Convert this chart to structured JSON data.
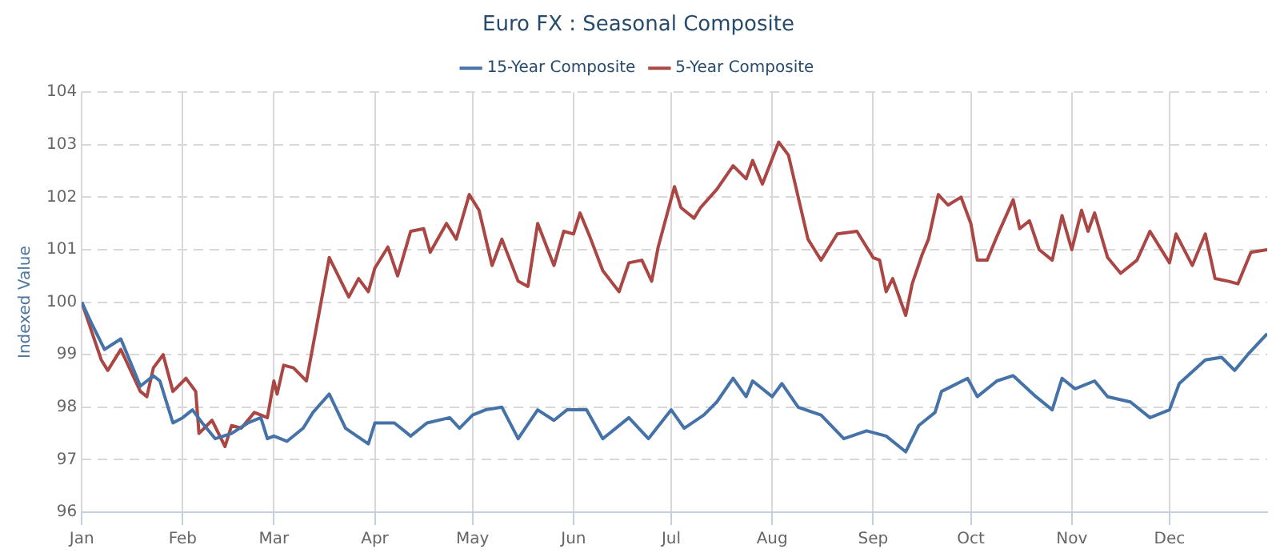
{
  "chart_data": {
    "type": "line",
    "title": "Euro FX : Seasonal Composite",
    "ylabel": "Indexed Value",
    "xlim": [
      "--01-01",
      "--12-31"
    ],
    "xticks": [
      {
        "value": "--01-01",
        "label": "Jan"
      },
      {
        "value": "--02-01",
        "label": "Feb"
      },
      {
        "value": "--03-01",
        "label": "Mar"
      },
      {
        "value": "--04-01",
        "label": "Apr"
      },
      {
        "value": "--05-01",
        "label": "May"
      },
      {
        "value": "--06-01",
        "label": "Jun"
      },
      {
        "value": "--07-01",
        "label": "Jul"
      },
      {
        "value": "--08-01",
        "label": "Aug"
      },
      {
        "value": "--09-01",
        "label": "Sep"
      },
      {
        "value": "--10-01",
        "label": "Oct"
      },
      {
        "value": "--11-01",
        "label": "Nov"
      },
      {
        "value": "--12-01",
        "label": "Dec"
      }
    ],
    "ylim": [
      96,
      104
    ],
    "yticks": [
      96,
      97,
      98,
      99,
      100,
      101,
      102,
      103,
      104
    ],
    "grid": true,
    "legend": "top",
    "marker": "none",
    "line_style": "solid",
    "series": [
      {
        "name": "15-Year Composite",
        "color": "#4572a7",
        "x": [
          "--01-01",
          "--01-04",
          "--01-08",
          "--01-13",
          "--01-19",
          "--01-23",
          "--01-25",
          "--01-29",
          "--02-01",
          "--02-04",
          "--02-07",
          "--02-11",
          "--02-16",
          "--02-21",
          "--02-25",
          "--02-27",
          "--03-01",
          "--03-05",
          "--03-10",
          "--03-13",
          "--03-18",
          "--03-23",
          "--03-30",
          "--04-01",
          "--04-07",
          "--04-12",
          "--04-17",
          "--04-24",
          "--04-27",
          "--05-01",
          "--05-05",
          "--05-10",
          "--05-15",
          "--05-21",
          "--05-26",
          "--05-30",
          "--06-05",
          "--06-10",
          "--06-18",
          "--06-24",
          "--07-01",
          "--07-05",
          "--07-11",
          "--07-15",
          "--07-20",
          "--07-24",
          "--07-26",
          "--08-01",
          "--08-04",
          "--08-09",
          "--08-16",
          "--08-23",
          "--08-30",
          "--09-05",
          "--09-11",
          "--09-15",
          "--09-20",
          "--09-22",
          "--09-30",
          "--10-03",
          "--10-09",
          "--10-14",
          "--10-21",
          "--10-26",
          "--10-29",
          "--11-02",
          "--11-08",
          "--11-12",
          "--11-19",
          "--11-25",
          "--12-01",
          "--12-04",
          "--12-12",
          "--12-17",
          "--12-21",
          "--12-25",
          "--12-31"
        ],
        "values": [
          100.0,
          99.6,
          99.1,
          99.3,
          98.4,
          98.6,
          98.5,
          97.7,
          97.8,
          97.95,
          97.7,
          97.4,
          97.5,
          97.7,
          97.8,
          97.4,
          97.45,
          97.35,
          97.6,
          97.9,
          98.25,
          97.6,
          97.3,
          97.7,
          97.7,
          97.45,
          97.7,
          97.8,
          97.6,
          97.85,
          97.95,
          98.0,
          97.4,
          97.95,
          97.75,
          97.95,
          97.95,
          97.4,
          97.8,
          97.4,
          97.95,
          97.6,
          97.85,
          98.1,
          98.55,
          98.2,
          98.5,
          98.2,
          98.45,
          98.0,
          97.85,
          97.4,
          97.55,
          97.45,
          97.15,
          97.65,
          97.9,
          98.3,
          98.55,
          98.2,
          98.5,
          98.6,
          98.2,
          97.95,
          98.55,
          98.35,
          98.5,
          98.2,
          98.1,
          97.8,
          97.95,
          98.45,
          98.9,
          98.95,
          98.7,
          99.0,
          99.4
        ]
      },
      {
        "name": "5-Year Composite",
        "color": "#aa4643",
        "x": [
          "--01-01",
          "--01-07",
          "--01-09",
          "--01-13",
          "--01-19",
          "--01-21",
          "--01-23",
          "--01-26",
          "--01-29",
          "--02-02",
          "--02-05",
          "--02-06",
          "--02-10",
          "--02-14",
          "--02-16",
          "--02-19",
          "--02-23",
          "--02-27",
          "--03-01",
          "--03-02",
          "--03-04",
          "--03-07",
          "--03-11",
          "--03-14",
          "--03-18",
          "--03-24",
          "--03-27",
          "--03-30",
          "--04-01",
          "--04-05",
          "--04-08",
          "--04-12",
          "--04-16",
          "--04-18",
          "--04-23",
          "--04-26",
          "--04-30",
          "--05-03",
          "--05-07",
          "--05-10",
          "--05-15",
          "--05-18",
          "--05-21",
          "--05-26",
          "--05-29",
          "--06-01",
          "--06-03",
          "--06-06",
          "--06-10",
          "--06-15",
          "--06-18",
          "--06-22",
          "--06-25",
          "--06-27",
          "--07-02",
          "--07-04",
          "--07-08",
          "--07-10",
          "--07-15",
          "--07-20",
          "--07-24",
          "--07-26",
          "--07-29",
          "--08-03",
          "--08-06",
          "--08-09",
          "--08-12",
          "--08-16",
          "--08-21",
          "--08-27",
          "--09-01",
          "--09-03",
          "--09-05",
          "--09-07",
          "--09-11",
          "--09-13",
          "--09-16",
          "--09-18",
          "--09-21",
          "--09-24",
          "--09-28",
          "--10-01",
          "--10-03",
          "--10-06",
          "--10-09",
          "--10-14",
          "--10-16",
          "--10-19",
          "--10-22",
          "--10-26",
          "--10-29",
          "--11-01",
          "--11-04",
          "--11-06",
          "--11-08",
          "--11-12",
          "--11-16",
          "--11-21",
          "--11-25",
          "--12-01",
          "--12-03",
          "--12-08",
          "--12-12",
          "--12-15",
          "--12-19",
          "--12-22",
          "--12-26",
          "--12-31"
        ],
        "values": [
          100.0,
          98.9,
          98.7,
          99.1,
          98.3,
          98.2,
          98.75,
          99.0,
          98.3,
          98.55,
          98.3,
          97.5,
          97.75,
          97.25,
          97.65,
          97.6,
          97.9,
          97.8,
          98.5,
          98.25,
          98.8,
          98.75,
          98.5,
          99.5,
          100.85,
          100.1,
          100.45,
          100.2,
          100.65,
          101.05,
          100.5,
          101.35,
          101.4,
          100.95,
          101.5,
          101.2,
          102.05,
          101.75,
          100.7,
          101.2,
          100.4,
          100.3,
          101.5,
          100.7,
          101.35,
          101.3,
          101.7,
          101.25,
          100.6,
          100.2,
          100.75,
          100.8,
          100.4,
          101.05,
          102.2,
          101.8,
          101.6,
          101.8,
          102.15,
          102.6,
          102.35,
          102.7,
          102.25,
          103.05,
          102.8,
          102.0,
          101.2,
          100.8,
          101.3,
          101.35,
          100.85,
          100.8,
          100.2,
          100.45,
          99.75,
          100.35,
          100.9,
          101.2,
          102.05,
          101.85,
          102.0,
          101.5,
          100.8,
          100.8,
          101.25,
          101.95,
          101.4,
          101.55,
          101.0,
          100.8,
          101.65,
          101.0,
          101.75,
          101.35,
          101.7,
          100.85,
          100.55,
          100.8,
          101.35,
          100.75,
          101.3,
          100.7,
          101.3,
          100.45,
          100.4,
          100.35,
          100.95,
          101.0
        ]
      }
    ]
  }
}
